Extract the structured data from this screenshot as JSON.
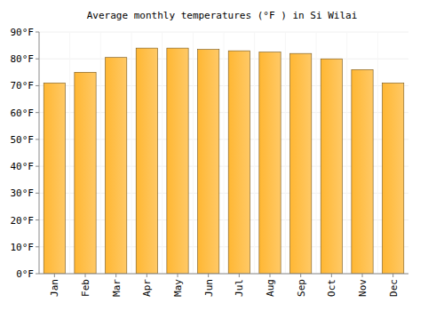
{
  "chart_data": {
    "type": "bar",
    "title": "Average monthly temperatures (°F ) in Si Wilai",
    "categories": [
      "Jan",
      "Feb",
      "Mar",
      "Apr",
      "May",
      "Jun",
      "Jul",
      "Aug",
      "Sep",
      "Oct",
      "Nov",
      "Dec"
    ],
    "values": [
      71,
      75,
      80.5,
      84,
      84,
      83.5,
      83,
      82.5,
      82,
      80,
      76,
      71
    ],
    "color": "#ffb733",
    "ylim": [
      0,
      90
    ],
    "yticks": [
      {
        "value": 0,
        "label": "0°F"
      },
      {
        "value": 10,
        "label": "10°F"
      },
      {
        "value": 20,
        "label": "20°F"
      },
      {
        "value": 30,
        "label": "30°F"
      },
      {
        "value": 40,
        "label": "40°F"
      },
      {
        "value": 50,
        "label": "50°F"
      },
      {
        "value": 60,
        "label": "60°F"
      },
      {
        "value": 70,
        "label": "70°F"
      },
      {
        "value": 80,
        "label": "80°F"
      },
      {
        "value": 90,
        "label": "90°F"
      }
    ],
    "grid": true
  }
}
